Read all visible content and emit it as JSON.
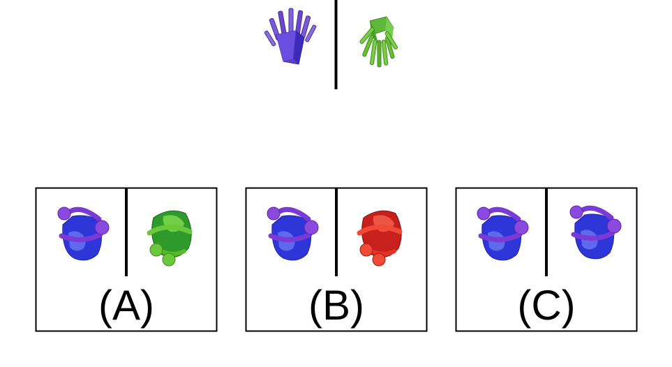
{
  "example": {
    "left_object": {
      "icon": "fries-box-icon",
      "color": "#6a3cc8"
    },
    "right_object": {
      "icon": "fries-box-upside-down-icon",
      "color": "#6fc12c"
    }
  },
  "options": [
    {
      "label": "(A)",
      "left_object": {
        "icon": "bucket-icon",
        "color": "#3b3fd6"
      },
      "right_object": {
        "icon": "bucket-tilted-icon",
        "color": "#3aa834"
      }
    },
    {
      "label": "(B)",
      "left_object": {
        "icon": "bucket-icon",
        "color": "#3b3fd6"
      },
      "right_object": {
        "icon": "bucket-tilted-icon",
        "color": "#e0352a"
      }
    },
    {
      "label": "(C)",
      "left_object": {
        "icon": "bucket-icon",
        "color": "#3b3fd6"
      },
      "right_object": {
        "icon": "bucket-icon",
        "color": "#3b3fd6"
      }
    }
  ]
}
